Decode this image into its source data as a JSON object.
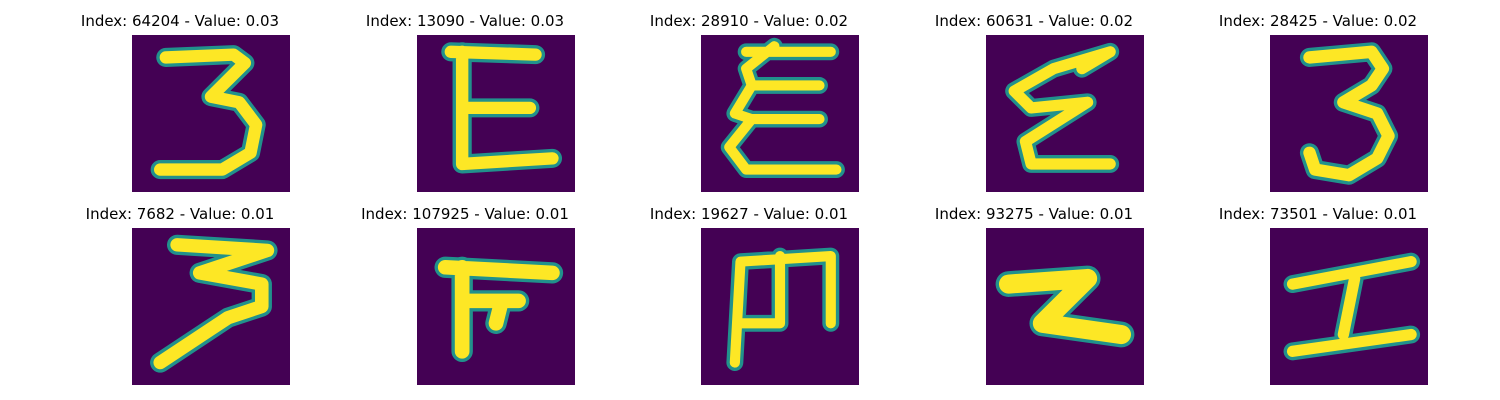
{
  "colors": {
    "background": "#440154",
    "edge": "#21918c",
    "stroke": "#fde725",
    "mid": "#5ec962"
  },
  "panels": [
    {
      "title": "Index: 64204 - Value: 0.03",
      "glyph": "3"
    },
    {
      "title": "Index: 13090 - Value: 0.03",
      "glyph": "E"
    },
    {
      "title": "Index: 28910 - Value: 0.02",
      "glyph": "ξ"
    },
    {
      "title": "Index: 60631 - Value: 0.02",
      "glyph": "ξ"
    },
    {
      "title": "Index: 28425 - Value: 0.02",
      "glyph": "3"
    },
    {
      "title": "Index: 7682 - Value: 0.01",
      "glyph": "3"
    },
    {
      "title": "Index: 107925 - Value: 0.01",
      "glyph": "π"
    },
    {
      "title": "Index: 19627 - Value: 0.01",
      "glyph": "m"
    },
    {
      "title": "Index: 93275 - Value: 0.01",
      "glyph": "z"
    },
    {
      "title": "Index: 73501 - Value: 0.01",
      "glyph": "I"
    }
  ]
}
